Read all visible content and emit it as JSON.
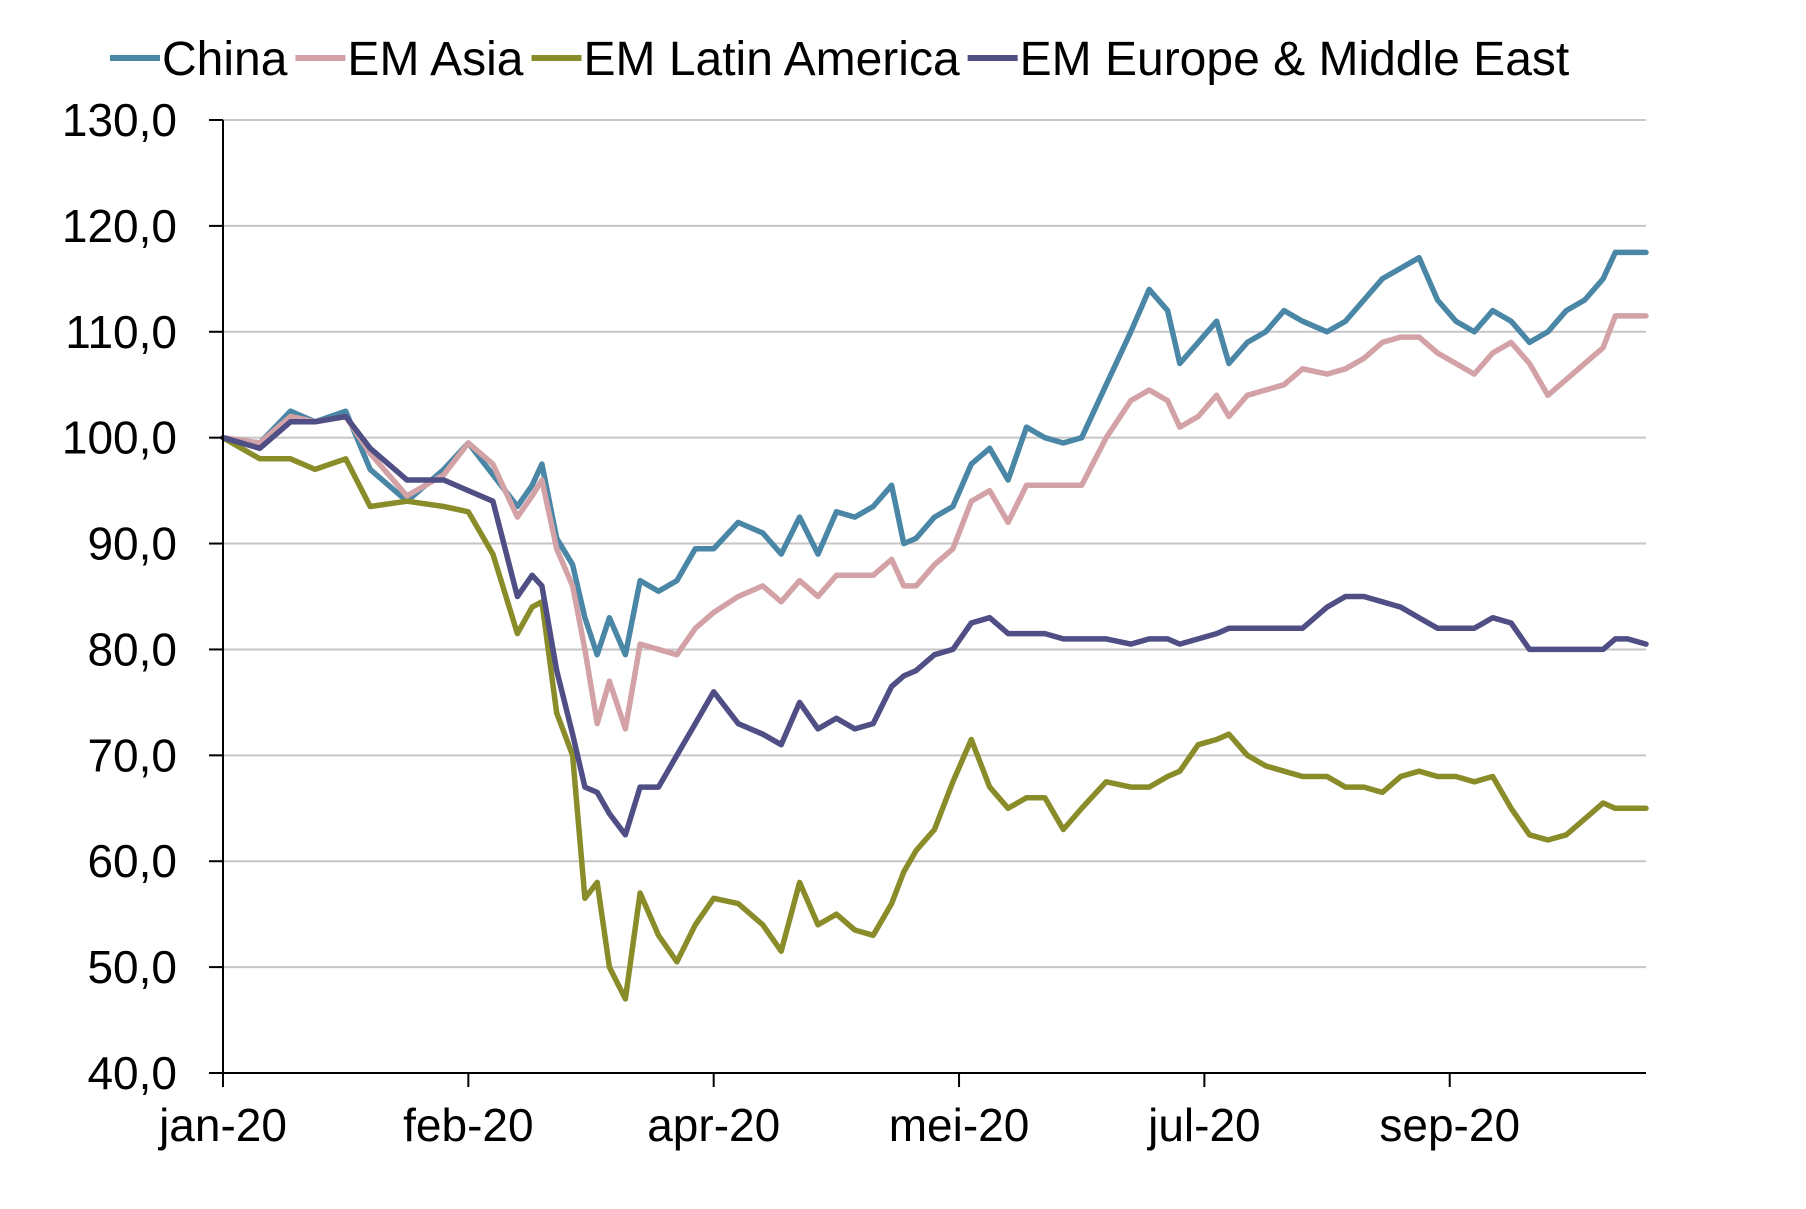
{
  "chart_data": {
    "type": "line",
    "title": "",
    "xlabel": "",
    "ylabel": "",
    "ylim": [
      40,
      130
    ],
    "yticks": [
      40,
      50,
      60,
      70,
      80,
      90,
      100,
      110,
      120,
      130
    ],
    "ytick_labels": [
      "40,0",
      "50,0",
      "60,0",
      "70,0",
      "80,0",
      "90,0",
      "100,0",
      "110,0",
      "120,0",
      "130,0"
    ],
    "xlim": [
      0,
      11.6
    ],
    "xticks": [
      0,
      2,
      4,
      6,
      8,
      10
    ],
    "xtick_labels": [
      "jan-20",
      "feb-20",
      "apr-20",
      "mei-20",
      "jul-20",
      "sep-20"
    ],
    "grid": "horizontal",
    "legend": "top",
    "series": [
      {
        "name": "China",
        "color": "#4a86a5",
        "x": [
          0,
          0.3,
          0.55,
          0.75,
          1.0,
          1.2,
          1.5,
          1.8,
          2.0,
          2.2,
          2.4,
          2.52,
          2.6,
          2.72,
          2.85,
          2.95,
          3.05,
          3.15,
          3.28,
          3.4,
          3.55,
          3.7,
          3.85,
          4.0,
          4.2,
          4.4,
          4.55,
          4.7,
          4.85,
          5.0,
          5.15,
          5.3,
          5.45,
          5.55,
          5.65,
          5.8,
          5.95,
          6.1,
          6.25,
          6.4,
          6.55,
          6.7,
          6.85,
          7.0,
          7.2,
          7.4,
          7.55,
          7.7,
          7.8,
          7.95,
          8.1,
          8.2,
          8.35,
          8.5,
          8.65,
          8.8,
          9.0,
          9.15,
          9.3,
          9.45,
          9.6,
          9.75,
          9.9,
          10.05,
          10.2,
          10.35,
          10.5,
          10.65,
          10.8,
          10.95,
          11.1,
          11.25,
          11.35,
          11.45,
          11.6
        ],
        "values": [
          100,
          99.5,
          102.5,
          101.5,
          102.5,
          97,
          94,
          97,
          99.5,
          96.5,
          93.5,
          95.5,
          97.5,
          90.5,
          88,
          83,
          79.5,
          83,
          79.5,
          86.5,
          85.5,
          86.5,
          89.5,
          89.5,
          92,
          91,
          89,
          92.5,
          89,
          93,
          92.5,
          93.5,
          95.5,
          90,
          90.5,
          92.5,
          93.5,
          97.5,
          99,
          96,
          101,
          100,
          99.5,
          100,
          105,
          110,
          114,
          112,
          107,
          109,
          111,
          107,
          109,
          110,
          112,
          111,
          110,
          111,
          113,
          115,
          116,
          117,
          113,
          111,
          110,
          112,
          111,
          109,
          110,
          112,
          113,
          115,
          117.5,
          117.5,
          117.5
        ]
      },
      {
        "name": "EM Asia",
        "color": "#d3a2a6",
        "x": [
          0,
          0.3,
          0.55,
          0.75,
          1.0,
          1.2,
          1.5,
          1.8,
          2.0,
          2.2,
          2.4,
          2.52,
          2.6,
          2.72,
          2.85,
          2.95,
          3.05,
          3.15,
          3.28,
          3.4,
          3.55,
          3.7,
          3.85,
          4.0,
          4.2,
          4.4,
          4.55,
          4.7,
          4.85,
          5.0,
          5.15,
          5.3,
          5.45,
          5.55,
          5.65,
          5.8,
          5.95,
          6.1,
          6.25,
          6.4,
          6.55,
          6.7,
          6.85,
          7.0,
          7.2,
          7.4,
          7.55,
          7.7,
          7.8,
          7.95,
          8.1,
          8.2,
          8.35,
          8.5,
          8.65,
          8.8,
          9.0,
          9.15,
          9.3,
          9.45,
          9.6,
          9.75,
          9.9,
          10.05,
          10.2,
          10.35,
          10.5,
          10.65,
          10.8,
          10.95,
          11.1,
          11.25,
          11.35,
          11.45,
          11.6
        ],
        "values": [
          100,
          99.5,
          102,
          101.5,
          102,
          98.5,
          94.5,
          96.5,
          99.5,
          97.5,
          92.5,
          94.5,
          96,
          89.5,
          86,
          80,
          73,
          77,
          72.5,
          80.5,
          80,
          79.5,
          82,
          83.5,
          85,
          86,
          84.5,
          86.5,
          85,
          87,
          87,
          87,
          88.5,
          86,
          86,
          88,
          89.5,
          94,
          95,
          92,
          95.5,
          95.5,
          95.5,
          95.5,
          100,
          103.5,
          104.5,
          103.5,
          101,
          102,
          104,
          102,
          104,
          104.5,
          105,
          106.5,
          106,
          106.5,
          107.5,
          109,
          109.5,
          109.5,
          108,
          107,
          106,
          108,
          109,
          107,
          104,
          105.5,
          107,
          108.5,
          111.5,
          111.5,
          111.5
        ]
      },
      {
        "name": "EM Latin America",
        "color": "#8a8c2a",
        "x": [
          0,
          0.3,
          0.55,
          0.75,
          1.0,
          1.2,
          1.5,
          1.8,
          2.0,
          2.2,
          2.4,
          2.52,
          2.6,
          2.72,
          2.85,
          2.95,
          3.05,
          3.15,
          3.28,
          3.4,
          3.55,
          3.7,
          3.85,
          4.0,
          4.2,
          4.4,
          4.55,
          4.7,
          4.85,
          5.0,
          5.15,
          5.3,
          5.45,
          5.55,
          5.65,
          5.8,
          5.95,
          6.1,
          6.25,
          6.4,
          6.55,
          6.7,
          6.85,
          7.0,
          7.2,
          7.4,
          7.55,
          7.7,
          7.8,
          7.95,
          8.1,
          8.2,
          8.35,
          8.5,
          8.65,
          8.8,
          9.0,
          9.15,
          9.3,
          9.45,
          9.6,
          9.75,
          9.9,
          10.05,
          10.2,
          10.35,
          10.5,
          10.65,
          10.8,
          10.95,
          11.1,
          11.25,
          11.35,
          11.45,
          11.6
        ],
        "values": [
          100,
          98,
          98,
          97,
          98,
          93.5,
          94,
          93.5,
          93,
          89,
          81.5,
          84,
          84.5,
          74,
          70,
          56.5,
          58,
          50,
          47,
          57,
          53,
          50.5,
          54,
          56.5,
          56,
          54,
          51.5,
          58,
          54,
          55,
          53.5,
          53,
          56,
          59,
          61,
          63,
          67.5,
          71.5,
          67,
          65,
          66,
          66,
          63,
          65,
          67.5,
          67,
          67,
          68,
          68.5,
          71,
          71.5,
          72,
          70,
          69,
          68.5,
          68,
          68,
          67,
          67,
          66.5,
          68,
          68.5,
          68,
          68,
          67.5,
          68,
          65,
          62.5,
          62,
          62.5,
          64,
          65.5,
          65,
          65,
          65
        ]
      },
      {
        "name": "EM Europe & Middle East",
        "color": "#4f4f86",
        "x": [
          0,
          0.3,
          0.55,
          0.75,
          1.0,
          1.2,
          1.5,
          1.8,
          2.0,
          2.2,
          2.4,
          2.52,
          2.6,
          2.72,
          2.85,
          2.95,
          3.05,
          3.15,
          3.28,
          3.4,
          3.55,
          3.7,
          3.85,
          4.0,
          4.2,
          4.4,
          4.55,
          4.7,
          4.85,
          5.0,
          5.15,
          5.3,
          5.45,
          5.55,
          5.65,
          5.8,
          5.95,
          6.1,
          6.25,
          6.4,
          6.55,
          6.7,
          6.85,
          7.0,
          7.2,
          7.4,
          7.55,
          7.7,
          7.8,
          7.95,
          8.1,
          8.2,
          8.35,
          8.5,
          8.65,
          8.8,
          9.0,
          9.15,
          9.3,
          9.45,
          9.6,
          9.75,
          9.9,
          10.05,
          10.2,
          10.35,
          10.5,
          10.65,
          10.8,
          10.95,
          11.1,
          11.25,
          11.35,
          11.45,
          11.6
        ],
        "values": [
          100,
          99,
          101.5,
          101.5,
          102,
          99,
          96,
          96,
          95,
          94,
          85,
          87,
          86,
          78,
          72,
          67,
          66.5,
          64.5,
          62.5,
          67,
          67,
          70,
          73,
          76,
          73,
          72,
          71,
          75,
          72.5,
          73.5,
          72.5,
          73,
          76.5,
          77.5,
          78,
          79.5,
          80,
          82.5,
          83,
          81.5,
          81.5,
          81.5,
          81,
          81,
          81,
          80.5,
          81,
          81,
          80.5,
          81,
          81.5,
          82,
          82,
          82,
          82,
          82,
          84,
          85,
          85,
          84.5,
          84,
          83,
          82,
          82,
          82,
          83,
          82.5,
          80,
          80,
          80,
          80,
          80,
          81,
          81,
          80.5
        ]
      }
    ]
  }
}
